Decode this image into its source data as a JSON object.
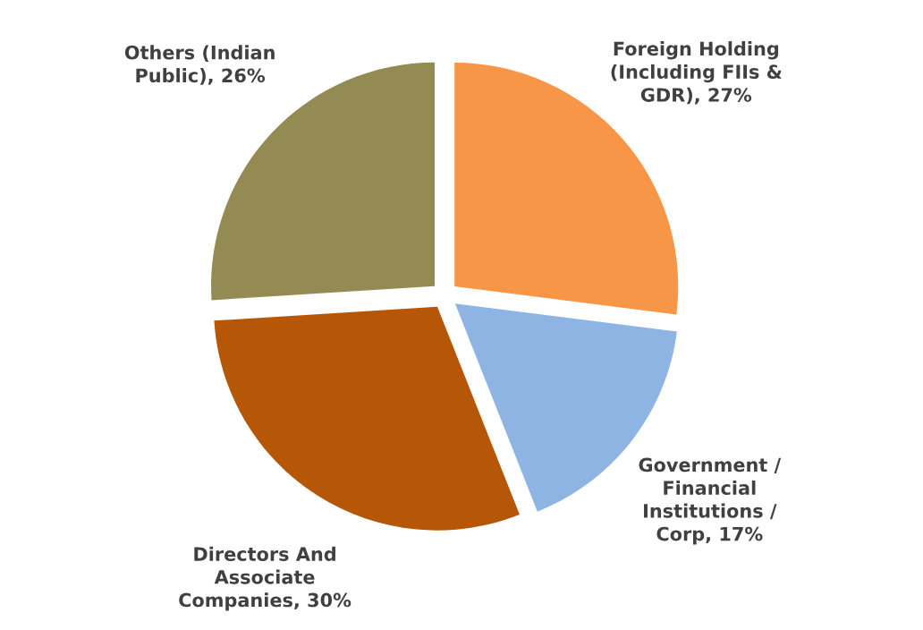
{
  "chart_data": {
    "type": "pie",
    "categories": [
      "Foreign Holding\n(Including FIIs &\nGDR), 27%",
      "Government /\nFinancial\nInstitutions /\nCorp, 17%",
      "Directors And\nAssociate\nCompanies, 30%",
      "Others (Indian\nPublic), 26%"
    ],
    "values": [
      27,
      17,
      30,
      26
    ],
    "colors": [
      "#f79646",
      "#8eb4e3",
      "#b65708",
      "#948a54"
    ]
  }
}
